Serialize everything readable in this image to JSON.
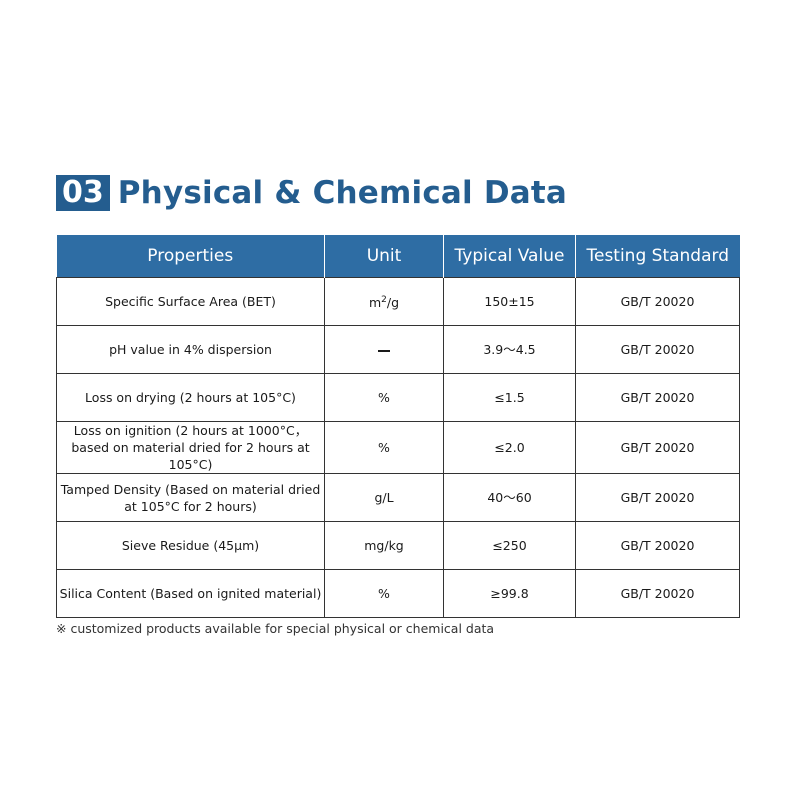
{
  "section": {
    "number": "03",
    "title": "Physical & Chemical Data"
  },
  "table": {
    "headers": [
      "Properties",
      "Unit",
      "Typical Value",
      "Testing Standard"
    ],
    "rows": [
      {
        "property": "Specific Surface Area (BET)",
        "unit_base": "m",
        "unit_sup": "2",
        "unit_rest": "/g",
        "value": "150±15",
        "standard": "GB/T 20020"
      },
      {
        "property": "pH value in 4% dispersion",
        "unit": "—",
        "value": "3.9～4.5",
        "standard": "GB/T 20020"
      },
      {
        "property": "Loss on drying (2 hours at 105°C)",
        "unit": "%",
        "value": "≤1.5",
        "standard": "GB/T 20020"
      },
      {
        "property": "Loss on ignition (2 hours at 1000°C，based on material dried for 2 hours at 105°C)",
        "unit": "%",
        "value": "≤2.0",
        "standard": "GB/T 20020"
      },
      {
        "property": "Tamped Density (Based on material dried at 105°C for 2 hours)",
        "unit": "g/L",
        "value": "40～60",
        "standard": "GB/T 20020"
      },
      {
        "property": "Sieve Residue (45μm)",
        "unit": "mg/kg",
        "value": "≤250",
        "standard": "GB/T 20020"
      },
      {
        "property": "Silica Content (Based on ignited material)",
        "unit": "%",
        "value": "≥99.8",
        "standard": "GB/T 20020"
      }
    ]
  },
  "note": "※ customized products available for special physical or chemical data"
}
